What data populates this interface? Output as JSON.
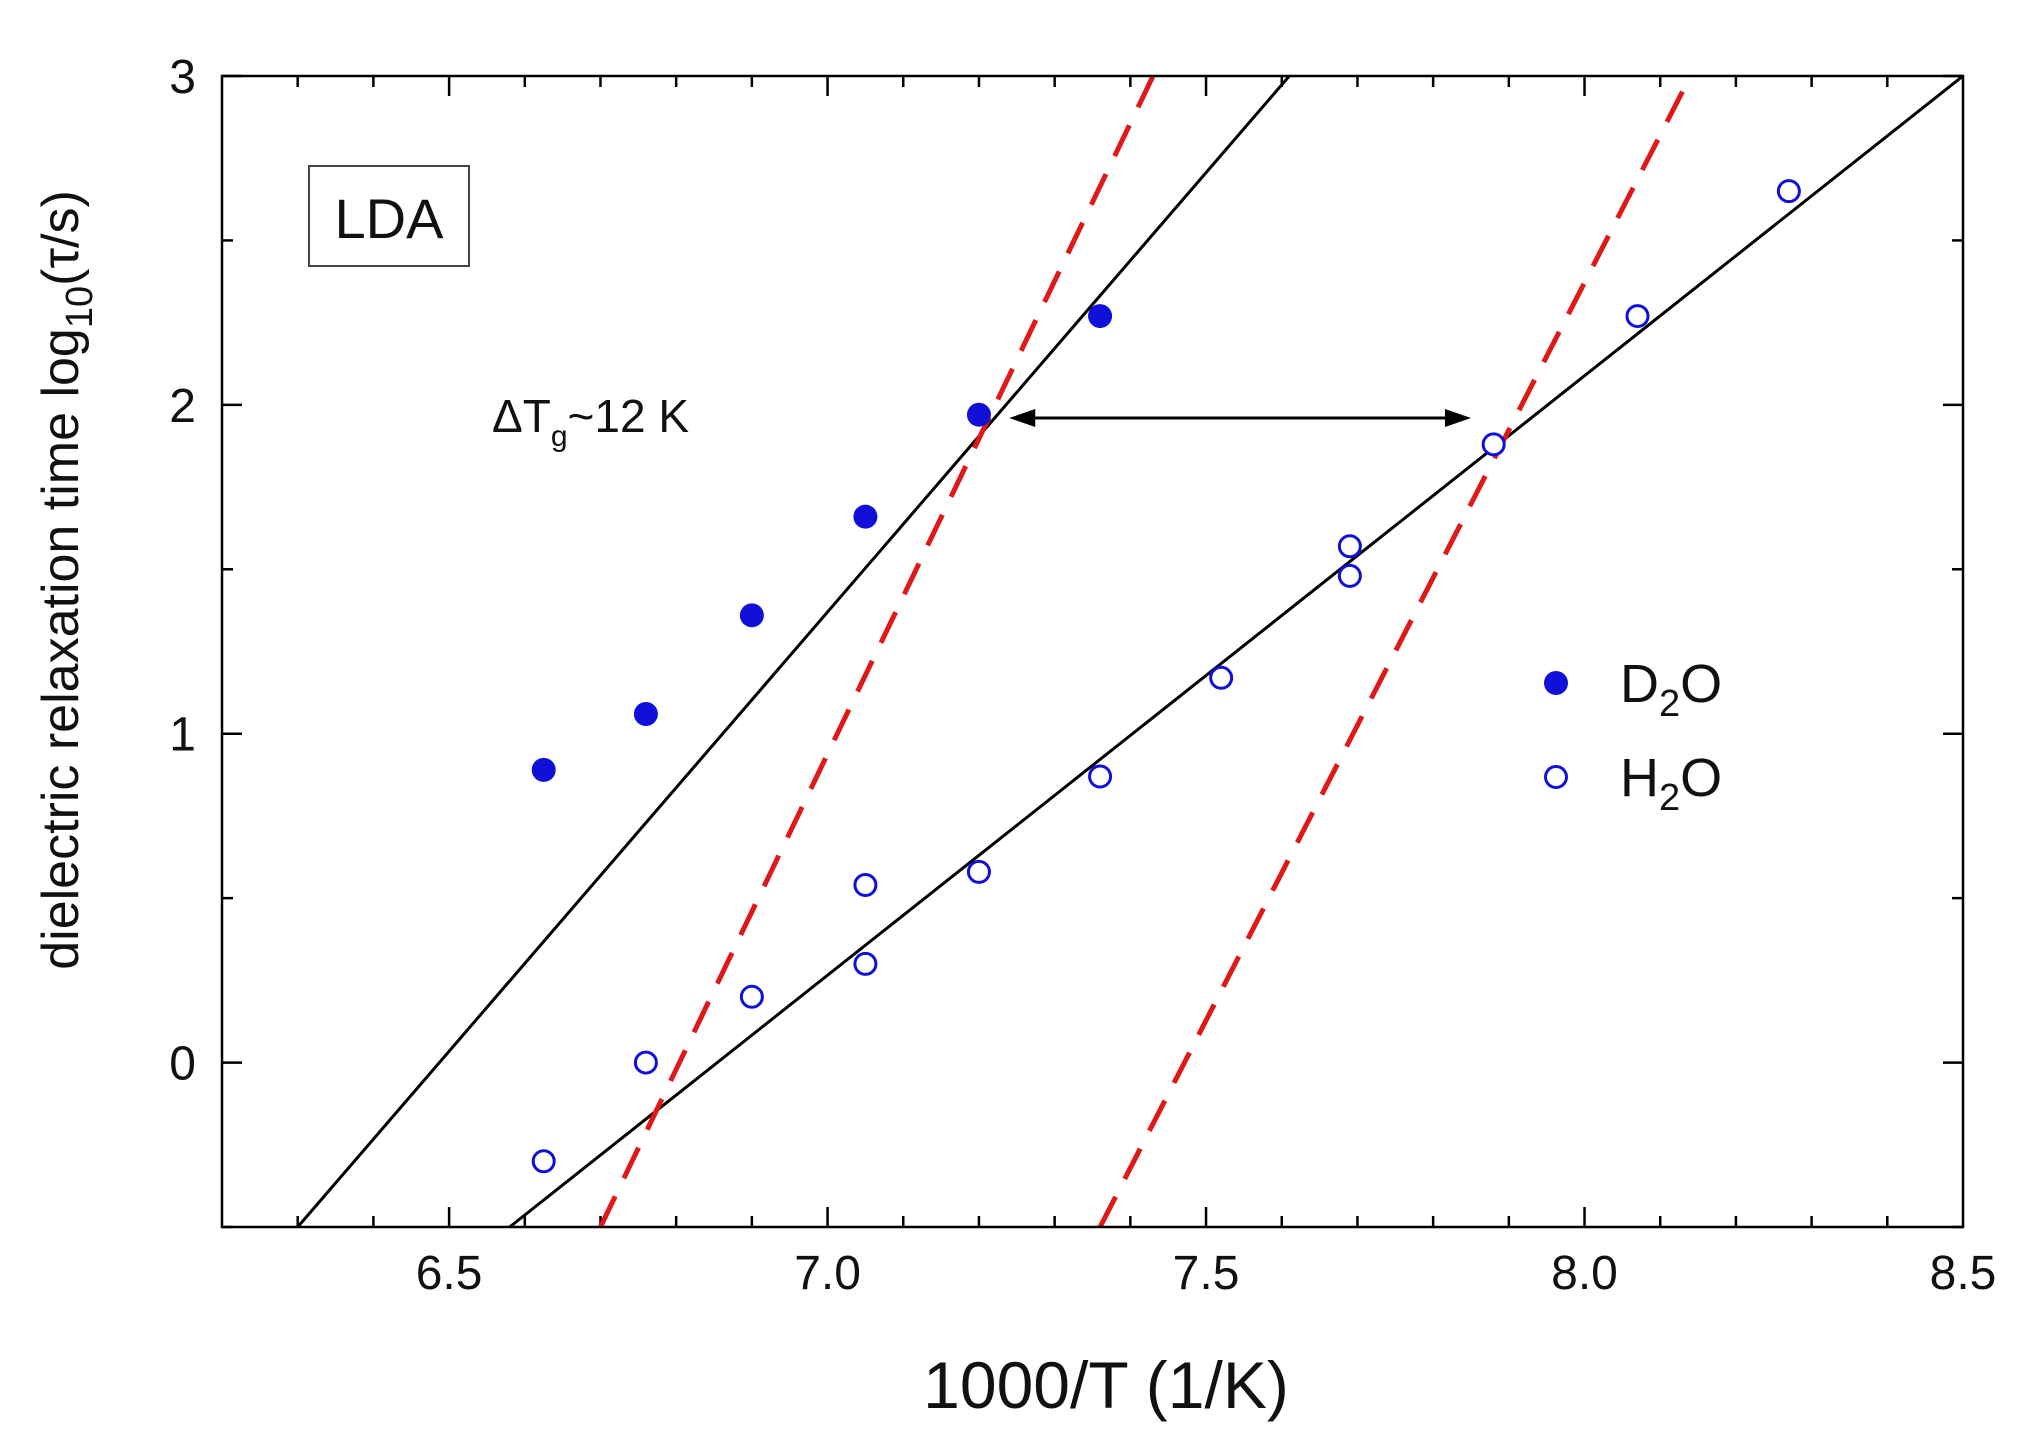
{
  "chart_data": {
    "type": "scatter",
    "title": "",
    "xlabel": "1000/T (1/K)",
    "ylabel_main": "dielectric relaxation time log",
    "ylabel_sub": "10",
    "ylabel_tail": "(τ/s)",
    "xlim": [
      6.2,
      8.5
    ],
    "ylim": [
      -0.5,
      3.0
    ],
    "x_ticks": [
      6.5,
      7.0,
      7.5,
      8.0,
      8.5
    ],
    "x_tick_labels": [
      "6.5",
      "7.0",
      "7.5",
      "8.0",
      "8.5"
    ],
    "y_ticks": [
      0,
      1,
      2,
      3
    ],
    "y_tick_labels": [
      "0",
      "1",
      "2",
      "3"
    ],
    "sample_label": "LDA",
    "annotation": {
      "delta": "ΔT",
      "sub": "g",
      "rest": "~12 K",
      "arrow_from_x": 7.24,
      "arrow_to_x": 7.85,
      "arrow_y": 1.96
    },
    "legend": {
      "position": "center-right",
      "entries": [
        {
          "label_main": "D",
          "label_sub": "2",
          "label_tail": "O",
          "marker": "filled"
        },
        {
          "label_main": "H",
          "label_sub": "2",
          "label_tail": "O",
          "marker": "open"
        }
      ]
    },
    "series": [
      {
        "name": "D2O",
        "marker": "filled",
        "color": "#1010d8",
        "points": [
          [
            6.625,
            0.89
          ],
          [
            6.76,
            1.06
          ],
          [
            6.9,
            1.36
          ],
          [
            7.05,
            1.66
          ],
          [
            7.2,
            1.97
          ],
          [
            7.36,
            2.27
          ]
        ]
      },
      {
        "name": "H2O",
        "marker": "open",
        "color": "#1010d8",
        "points": [
          [
            6.625,
            -0.3
          ],
          [
            6.76,
            0.0
          ],
          [
            6.9,
            0.2
          ],
          [
            7.05,
            0.3
          ],
          [
            7.05,
            0.54
          ],
          [
            7.2,
            0.58
          ],
          [
            7.36,
            0.87
          ],
          [
            7.52,
            1.17
          ],
          [
            7.69,
            1.48
          ],
          [
            7.69,
            1.57
          ],
          [
            7.88,
            1.88
          ],
          [
            8.07,
            2.27
          ],
          [
            8.27,
            2.65
          ]
        ]
      }
    ],
    "fit_lines": [
      {
        "name": "D2O fit",
        "style": "solid",
        "color": "#000000",
        "from": [
          6.3,
          -0.5
        ],
        "to": [
          7.61,
          3.0
        ]
      },
      {
        "name": "H2O fit",
        "style": "solid",
        "color": "#000000",
        "from": [
          6.58,
          -0.5
        ],
        "to": [
          8.5,
          3.0
        ]
      },
      {
        "name": "D2O reference",
        "style": "dashed",
        "color": "#e01818",
        "from": [
          6.7,
          -0.5
        ],
        "to": [
          7.43,
          3.0
        ]
      },
      {
        "name": "H2O reference",
        "style": "dashed",
        "color": "#e01818",
        "from": [
          7.36,
          -0.5
        ],
        "to": [
          8.14,
          3.0
        ]
      }
    ]
  }
}
